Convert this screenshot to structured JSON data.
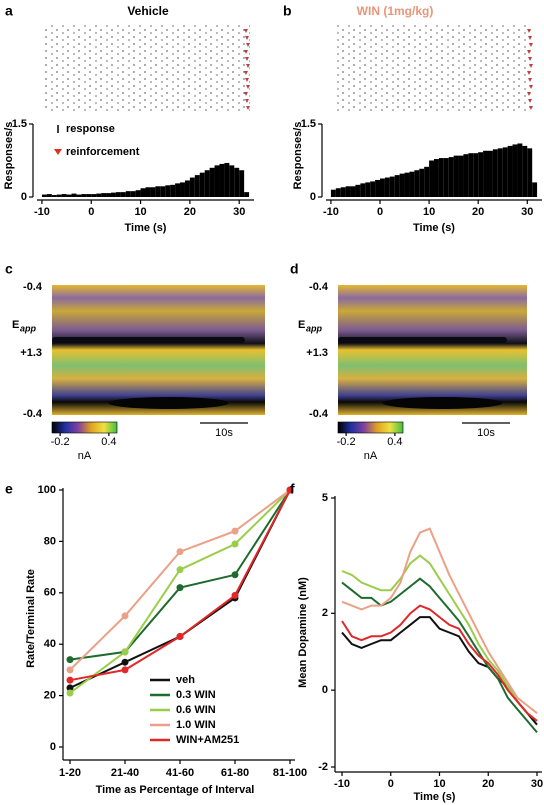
{
  "chart_data": [
    {
      "type": "histogram",
      "panel": "a",
      "title": "Vehicle",
      "title_color": "#000000",
      "ylabel": "Responses/s",
      "xlabel": "Time (s)",
      "color": "#000000",
      "legend": [
        {
          "name": "response",
          "color": "#000000"
        },
        {
          "name": "reinforcement",
          "color": "#e03020"
        }
      ],
      "bins": [
        -10,
        -9,
        -8,
        -7,
        -6,
        -5,
        -4,
        -3,
        -2,
        -1,
        0,
        1,
        2,
        3,
        4,
        5,
        6,
        7,
        8,
        9,
        10,
        11,
        12,
        13,
        14,
        15,
        16,
        17,
        18,
        19,
        20,
        21,
        22,
        23,
        24,
        25,
        26,
        27,
        28,
        29,
        30,
        31,
        32
      ],
      "values": [
        0.05,
        0.06,
        0.04,
        0.05,
        0.06,
        0.05,
        0.07,
        0.05,
        0.06,
        0.06,
        0.06,
        0.07,
        0.08,
        0.08,
        0.09,
        0.1,
        0.1,
        0.12,
        0.12,
        0.14,
        0.18,
        0.2,
        0.2,
        0.22,
        0.22,
        0.24,
        0.25,
        0.28,
        0.3,
        0.34,
        0.4,
        0.45,
        0.5,
        0.55,
        0.6,
        0.65,
        0.68,
        0.7,
        0.65,
        0.6,
        0.55,
        0.1
      ],
      "xlim": [
        -11,
        33
      ],
      "xticks": [
        -10,
        0,
        10,
        20,
        30
      ],
      "ylim": [
        0,
        1.5
      ],
      "yticks": [
        0,
        1.5
      ]
    },
    {
      "type": "histogram",
      "panel": "b",
      "title": "WIN (1mg/kg)",
      "title_color": "#e8967a",
      "ylabel": "Responses/s",
      "xlabel": "Time (s)",
      "color": "#000000",
      "bins": [
        -10,
        -9,
        -8,
        -7,
        -6,
        -5,
        -4,
        -3,
        -2,
        -1,
        0,
        1,
        2,
        3,
        4,
        5,
        6,
        7,
        8,
        9,
        10,
        11,
        12,
        13,
        14,
        15,
        16,
        17,
        18,
        19,
        20,
        21,
        22,
        23,
        24,
        25,
        26,
        27,
        28,
        29,
        30,
        31,
        32
      ],
      "values": [
        0.15,
        0.18,
        0.2,
        0.22,
        0.22,
        0.25,
        0.28,
        0.3,
        0.32,
        0.35,
        0.38,
        0.4,
        0.42,
        0.45,
        0.48,
        0.5,
        0.52,
        0.55,
        0.58,
        0.62,
        0.75,
        0.78,
        0.8,
        0.8,
        0.82,
        0.85,
        0.85,
        0.88,
        0.9,
        0.9,
        0.92,
        0.95,
        0.95,
        0.98,
        1.0,
        1.02,
        1.05,
        1.08,
        1.1,
        1.05,
        1.0,
        0.3
      ],
      "xlim": [
        -11,
        33
      ],
      "xticks": [
        -10,
        0,
        10,
        20,
        30
      ],
      "ylim": [
        0,
        1.5
      ],
      "yticks": [
        0,
        1.5
      ]
    },
    {
      "type": "colorplot",
      "panel": "c",
      "ylabel": "E",
      "ylabel_sub": "app",
      "ytick_labels": [
        "-0.4",
        "+1.3",
        "-0.4"
      ],
      "colorbar_lim": [
        -0.3,
        0.5
      ],
      "colorbar_ticks": [
        -0.2,
        0.4
      ],
      "colorbar_label": "nA",
      "scalebar_label": "10s"
    },
    {
      "type": "colorplot",
      "panel": "d",
      "ylabel": "E",
      "ylabel_sub": "app",
      "ytick_labels": [
        "-0.4",
        "+1.3",
        "-0.4"
      ],
      "colorbar_lim": [
        -0.3,
        0.5
      ],
      "colorbar_ticks": [
        -0.2,
        0.4
      ],
      "colorbar_label": "nA",
      "scalebar_label": "10s"
    },
    {
      "type": "line",
      "panel": "e",
      "ylabel": "Rate/Terminal Rate",
      "xlabel": "Time as Percentage of Interval",
      "categories": [
        "1-20",
        "21-40",
        "41-60",
        "61-80",
        "81-100"
      ],
      "ylim": [
        0,
        100
      ],
      "yticks": [
        0,
        20,
        40,
        60,
        80,
        100
      ],
      "markers": true,
      "series": [
        {
          "name": "veh",
          "color": "#111111",
          "values": [
            23,
            33,
            43,
            58,
            100
          ]
        },
        {
          "name": "0.3 WIN",
          "color": "#1e6b2e",
          "values": [
            34,
            37,
            62,
            67,
            100
          ]
        },
        {
          "name": "0.6 WIN",
          "color": "#9acd4a",
          "values": [
            21,
            37,
            69,
            79,
            100
          ]
        },
        {
          "name": "1.0 WIN",
          "color": "#eba088",
          "values": [
            30,
            51,
            76,
            84,
            100
          ]
        },
        {
          "name": "WIN+AM251",
          "color": "#e0282a",
          "values": [
            26,
            30,
            43,
            59,
            100
          ]
        }
      ]
    },
    {
      "type": "line",
      "panel": "f",
      "ylabel": "Mean Dopamine (nM)",
      "xlabel": "Time (s)",
      "x": [
        -10,
        -8,
        -6,
        -4,
        -2,
        0,
        2,
        4,
        6,
        8,
        10,
        12,
        14,
        16,
        18,
        20,
        22,
        24,
        26,
        28,
        30
      ],
      "xlim": [
        -10,
        30
      ],
      "xticks": [
        -10,
        0,
        10,
        20,
        30
      ],
      "ylim": [
        -2,
        5
      ],
      "yticks": [
        -2,
        0,
        2,
        5
      ],
      "series": [
        {
          "color": "#111111",
          "values": [
            1.5,
            1.2,
            1.1,
            1.2,
            1.3,
            1.3,
            1.5,
            1.7,
            1.9,
            1.9,
            1.6,
            1.5,
            1.4,
            1.0,
            0.7,
            0.6,
            0.3,
            0.1,
            -0.3,
            -0.6,
            -0.9
          ]
        },
        {
          "color": "#1e6b2e",
          "values": [
            2.8,
            2.6,
            2.4,
            2.4,
            2.2,
            2.3,
            2.5,
            2.7,
            2.9,
            2.7,
            2.4,
            2.1,
            1.8,
            1.4,
            1.0,
            0.6,
            0.3,
            -0.2,
            -0.5,
            -0.8,
            -1.1
          ]
        },
        {
          "color": "#9acd4a",
          "values": [
            3.1,
            3.0,
            2.8,
            2.7,
            2.6,
            2.6,
            2.9,
            3.3,
            3.5,
            3.3,
            2.9,
            2.5,
            2.1,
            1.7,
            1.2,
            0.8,
            0.5,
            0.1,
            -0.3,
            -0.6,
            -0.8
          ]
        },
        {
          "color": "#eba088",
          "values": [
            2.3,
            2.2,
            2.1,
            2.2,
            2.2,
            2.4,
            2.8,
            3.6,
            4.1,
            4.2,
            3.6,
            3.0,
            2.5,
            2.0,
            1.5,
            1.0,
            0.6,
            0.2,
            -0.2,
            -0.4,
            -0.6
          ]
        },
        {
          "color": "#e0282a",
          "values": [
            1.8,
            1.4,
            1.3,
            1.4,
            1.4,
            1.5,
            1.7,
            2.0,
            2.2,
            2.1,
            1.9,
            1.7,
            1.6,
            1.2,
            0.9,
            0.7,
            0.4,
            0.0,
            -0.3,
            -0.6,
            -0.8
          ]
        }
      ]
    }
  ]
}
